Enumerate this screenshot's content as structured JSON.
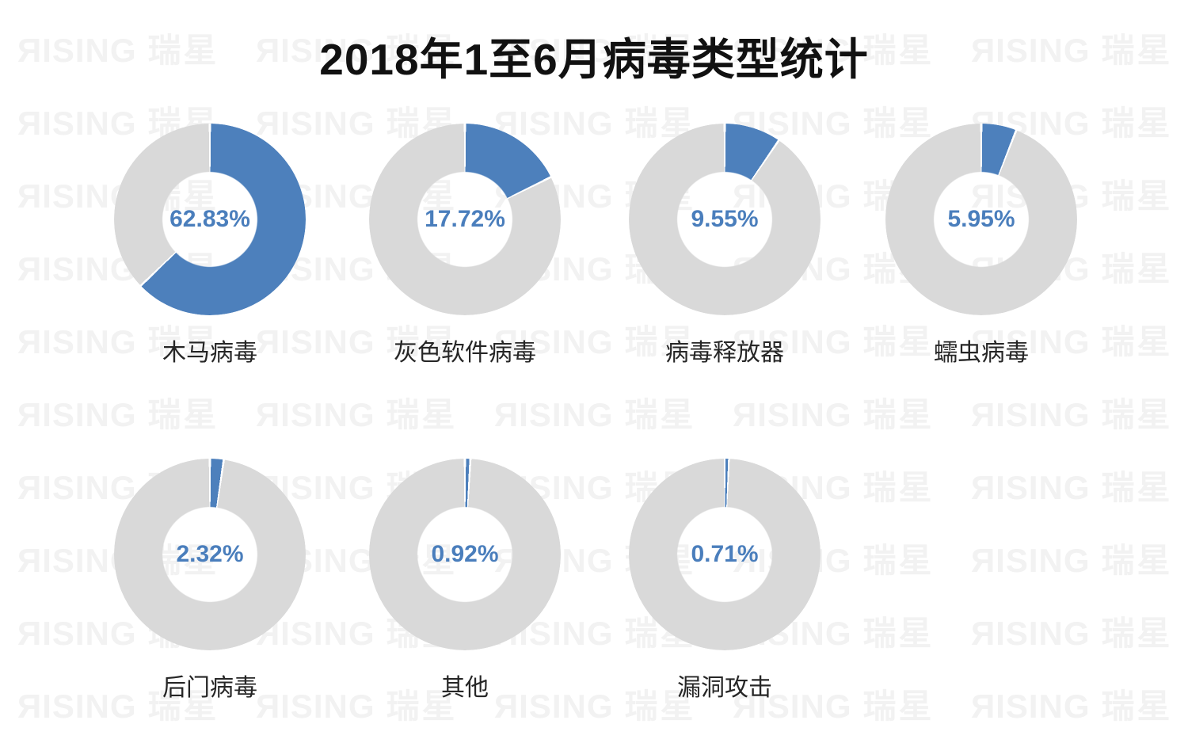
{
  "title": "2018年1至6月病毒类型统计",
  "watermark": {
    "brand_latin": "ЯISING",
    "brand_cjk": "瑞星"
  },
  "colors": {
    "slice_blue": "#4D80BC",
    "ring_gray": "#D9D9D9",
    "percent_text": "#4A7EBC",
    "category_text": "#262626",
    "title_text": "#111111",
    "watermark_text": "#F2F2F2",
    "background": "#FFFFFF"
  },
  "chart_data": {
    "type": "pie",
    "variant": "donut_small_multiples",
    "title": "2018年1至6月病毒类型统计",
    "categories": [
      "木马病毒",
      "灰色软件病毒",
      "病毒释放器",
      "蠕虫病毒",
      "后门病毒",
      "其他",
      "漏洞攻击"
    ],
    "values": [
      62.83,
      17.72,
      9.55,
      5.95,
      2.32,
      0.92,
      0.71
    ],
    "value_labels": [
      "62.83%",
      "17.72%",
      "9.55%",
      "5.95%",
      "2.32%",
      "0.92%",
      "0.71%"
    ],
    "unit": "%",
    "slice_start": "top, clockwise",
    "legend": "none",
    "rows": [
      4,
      3
    ]
  }
}
